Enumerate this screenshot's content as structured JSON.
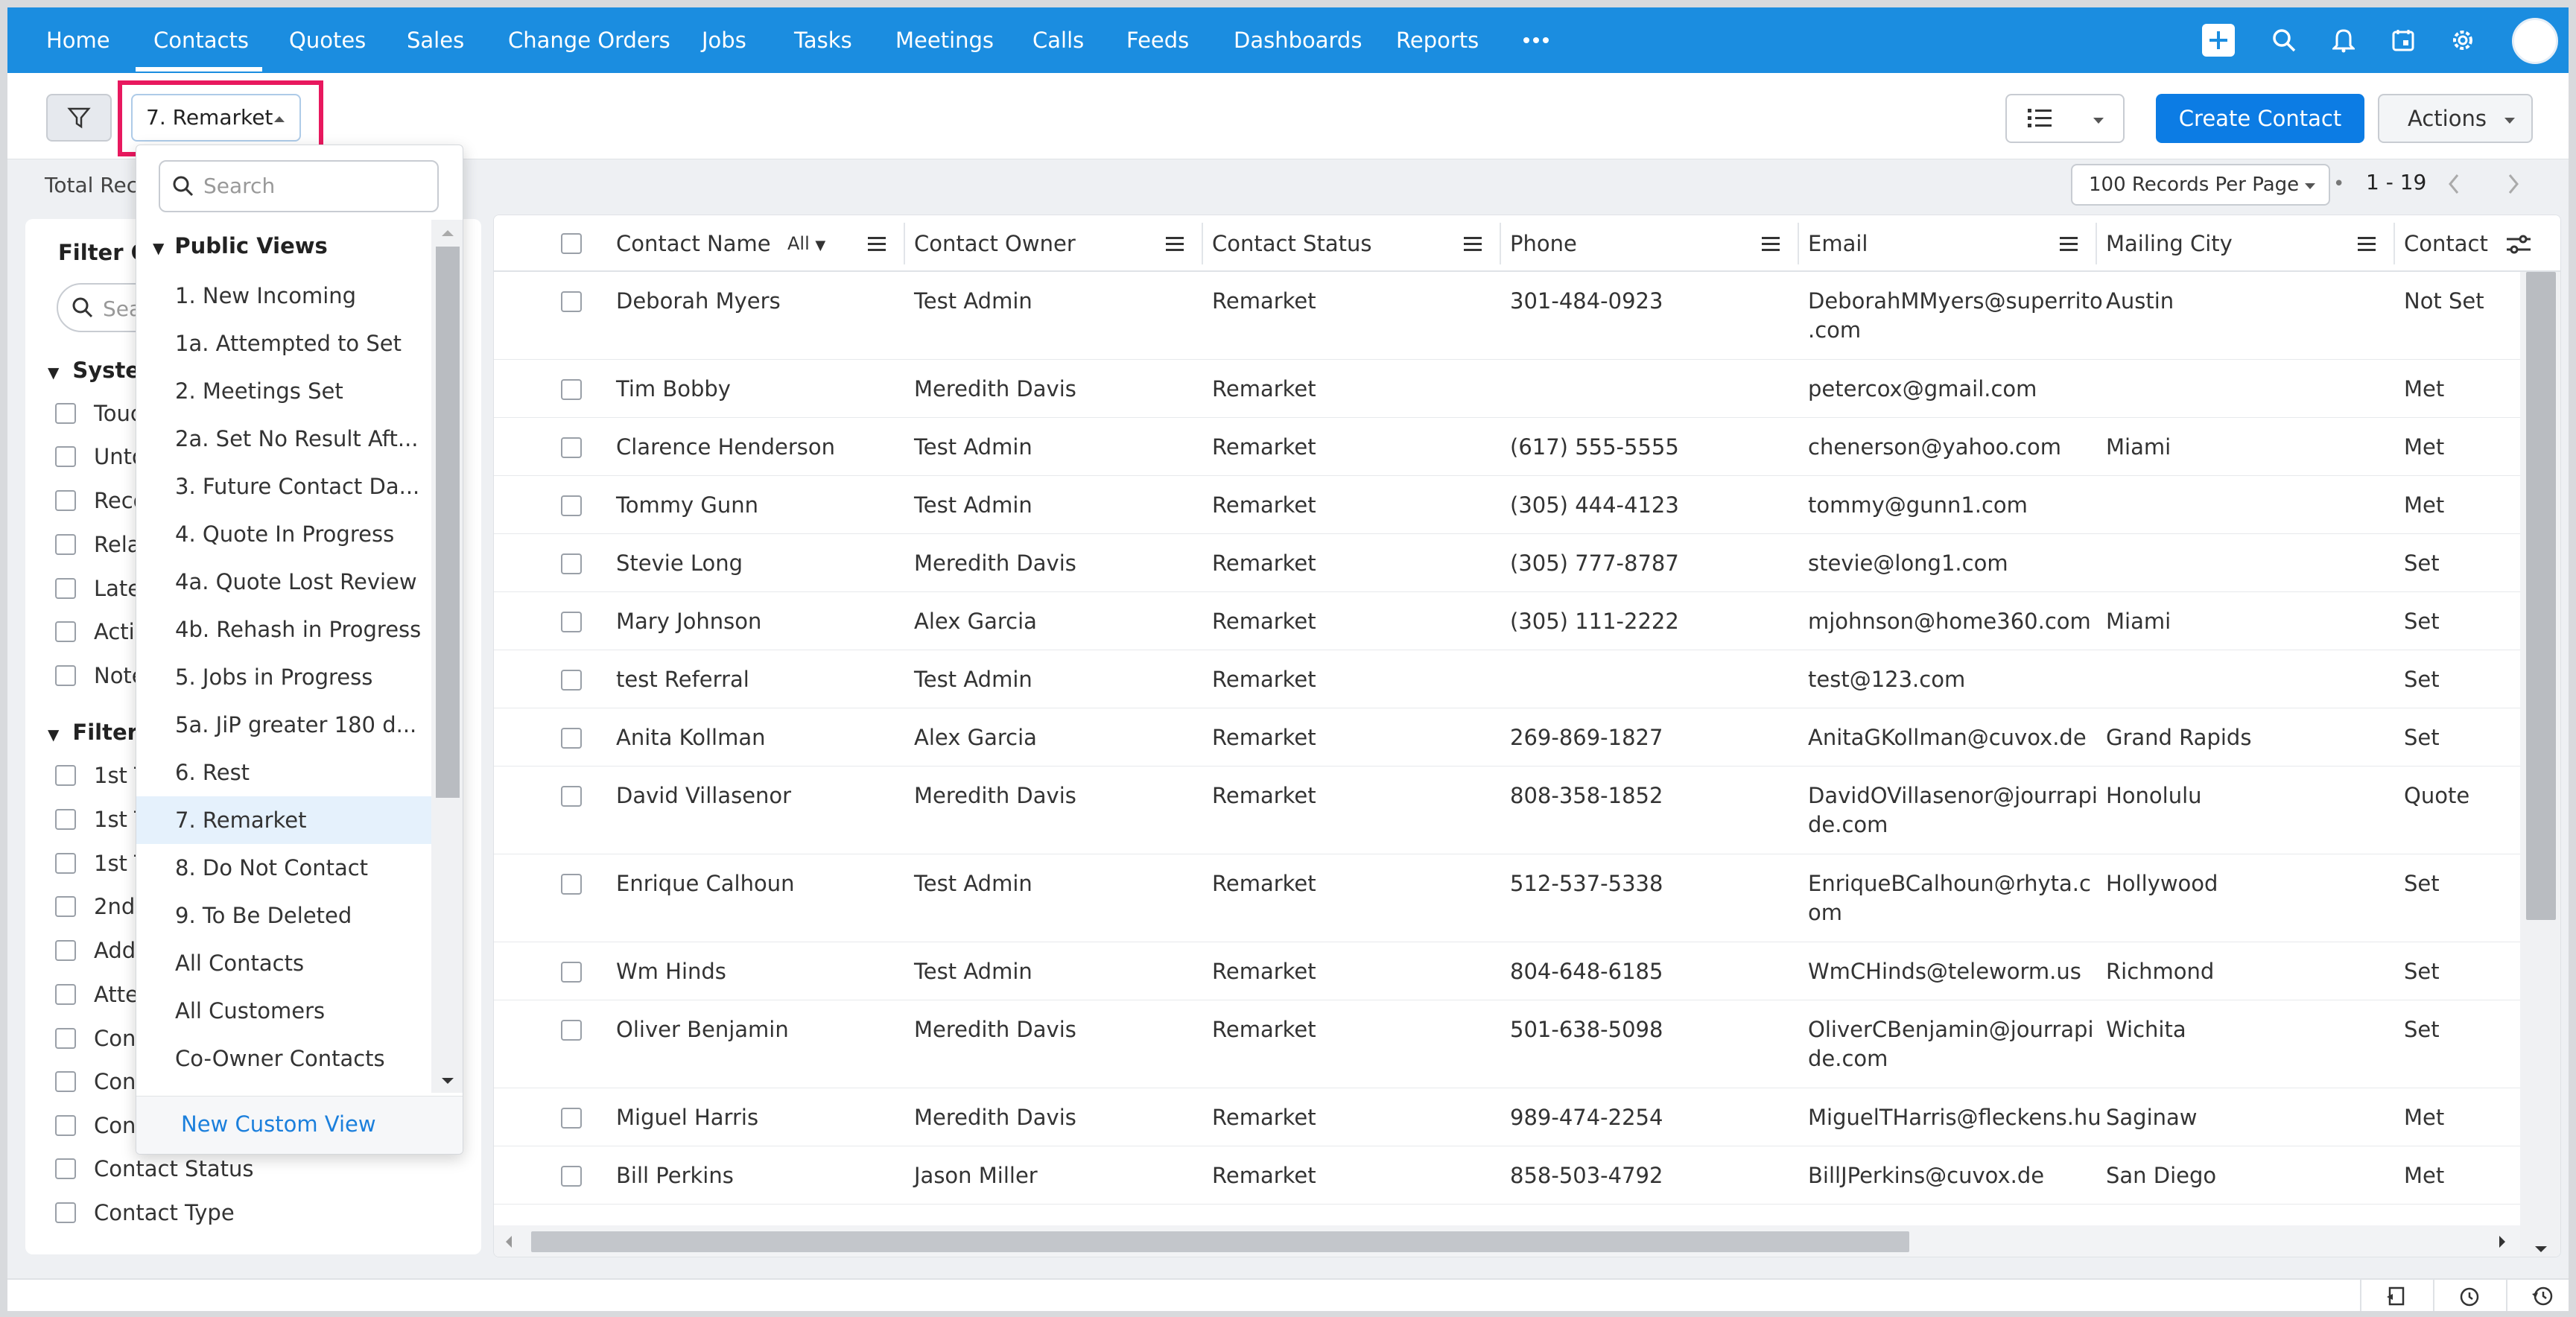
{
  "nav": {
    "items": [
      "Home",
      "Contacts",
      "Quotes",
      "Sales",
      "Change Orders",
      "Jobs",
      "Tasks",
      "Meetings",
      "Calls",
      "Feeds",
      "Dashboards",
      "Reports"
    ],
    "active": "Contacts",
    "more_icon": "more-horizontal-icon",
    "brand_color": "#1b8de0"
  },
  "toolbar": {
    "current_view": "7. Remarket",
    "create_label": "Create Contact",
    "actions_label": "Actions",
    "accent_color": "#0c7ce4"
  },
  "subbar": {
    "total_label": "Total Rec",
    "per_page": "100 Records Per Page",
    "range": "1 - 19"
  },
  "filter_panel": {
    "title": "Filter Co",
    "search_placeholder": "Sea",
    "system_group": "Syste",
    "system_items": [
      "Touc",
      "Unto",
      "Reco",
      "Rela",
      "Late",
      "Acti",
      "Note"
    ],
    "fields_group": "Filter",
    "field_items": [
      "1st T",
      "1st T",
      "1st T",
      "2nd",
      "Add",
      "Atte",
      "Con",
      "Con",
      "Con",
      "Contact Status",
      "Contact Type"
    ]
  },
  "dropdown": {
    "search_placeholder": "Search",
    "section": "Public Views",
    "items": [
      "1. New Incoming",
      "1a. Attempted to Set",
      "2. Meetings Set",
      "2a. Set No Result Aft...",
      "3. Future Contact Da...",
      "4. Quote In Progress",
      "4a. Quote Lost Review",
      "4b. Rehash in Progress",
      "5. Jobs in Progress",
      "5a. JiP greater 180 d...",
      "6. Rest",
      "7. Remarket",
      "8. Do Not Contact",
      "9. To Be Deleted",
      "All Contacts",
      "All Customers",
      "Co-Owner Contacts"
    ],
    "selected": "7. Remarket",
    "new_view": "New Custom View"
  },
  "grid": {
    "columns": [
      "Contact Name",
      "Contact Owner",
      "Contact Status",
      "Phone",
      "Email",
      "Mailing City",
      "Contact"
    ],
    "name_filter": "All",
    "rows": [
      {
        "name": "Deborah Myers",
        "owner": "Test Admin",
        "status": "Remarket",
        "phone": "301-484-0923",
        "email1": "DeborahMMyers@superrito",
        "email2": ".com",
        "city": "Austin",
        "contact": "Not Set"
      },
      {
        "name": "Tim Bobby",
        "owner": "Meredith Davis",
        "status": "Remarket",
        "phone": "",
        "email1": "petercox@gmail.com",
        "email2": "",
        "city": "",
        "contact": "Met"
      },
      {
        "name": "Clarence Henderson",
        "owner": "Test Admin",
        "status": "Remarket",
        "phone": "(617) 555-5555",
        "email1": "chenerson@yahoo.com",
        "email2": "",
        "city": "Miami",
        "contact": "Met"
      },
      {
        "name": "Tommy Gunn",
        "owner": "Test Admin",
        "status": "Remarket",
        "phone": "(305) 444-4123",
        "email1": "tommy@gunn1.com",
        "email2": "",
        "city": "",
        "contact": "Met"
      },
      {
        "name": "Stevie Long",
        "owner": "Meredith Davis",
        "status": "Remarket",
        "phone": "(305) 777-8787",
        "email1": "stevie@long1.com",
        "email2": "",
        "city": "",
        "contact": "Set"
      },
      {
        "name": "Mary Johnson",
        "owner": "Alex Garcia",
        "status": "Remarket",
        "phone": "(305) 111-2222",
        "email1": "mjohnson@home360.com",
        "email2": "",
        "city": "Miami",
        "contact": "Set"
      },
      {
        "name": "test Referral",
        "owner": "Test Admin",
        "status": "Remarket",
        "phone": "",
        "email1": "test@123.com",
        "email2": "",
        "city": "",
        "contact": "Set"
      },
      {
        "name": "Anita Kollman",
        "owner": "Alex Garcia",
        "status": "Remarket",
        "phone": "269-869-1827",
        "email1": "AnitaGKollman@cuvox.de",
        "email2": "",
        "city": "Grand Rapids",
        "contact": "Set"
      },
      {
        "name": "David Villasenor",
        "owner": "Meredith Davis",
        "status": "Remarket",
        "phone": "808-358-1852",
        "email1": "DavidOVillasenor@jourrapi",
        "email2": "de.com",
        "city": "Honolulu",
        "contact": "Quote"
      },
      {
        "name": "Enrique Calhoun",
        "owner": "Test Admin",
        "status": "Remarket",
        "phone": "512-537-5338",
        "email1": "EnriqueBCalhoun@rhyta.c",
        "email2": "om",
        "city": "Hollywood",
        "contact": "Set"
      },
      {
        "name": "Wm Hinds",
        "owner": "Test Admin",
        "status": "Remarket",
        "phone": "804-648-6185",
        "email1": "WmCHinds@teleworm.us",
        "email2": "",
        "city": "Richmond",
        "contact": "Set"
      },
      {
        "name": "Oliver Benjamin",
        "owner": "Meredith Davis",
        "status": "Remarket",
        "phone": "501-638-5098",
        "email1": "OliverCBenjamin@jourrapi",
        "email2": "de.com",
        "city": "Wichita",
        "contact": "Set"
      },
      {
        "name": "Miguel Harris",
        "owner": "Meredith Davis",
        "status": "Remarket",
        "phone": "989-474-2254",
        "email1": "MiguelTHarris@fleckens.hu",
        "email2": "",
        "city": "Saginaw",
        "contact": "Met"
      },
      {
        "name": "Bill Perkins",
        "owner": "Jason Miller",
        "status": "Remarket",
        "phone": "858-503-4792",
        "email1": "BillJPerkins@cuvox.de",
        "email2": "",
        "city": "San Diego",
        "contact": "Met"
      }
    ]
  }
}
